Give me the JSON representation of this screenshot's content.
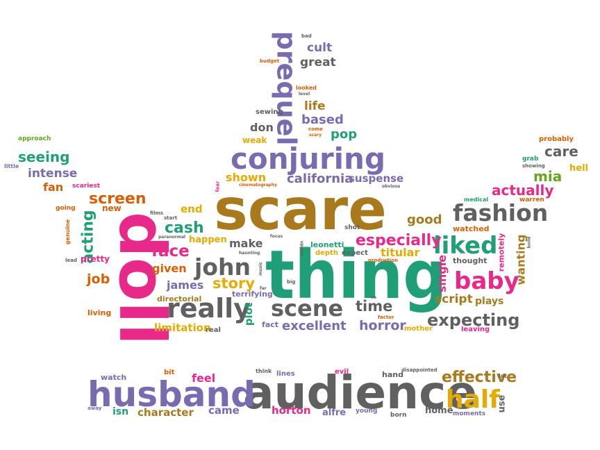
{
  "words": [
    {
      "text": "scare",
      "color": "#a97a1d"
    },
    {
      "text": "thing",
      "color": "#1f9e77"
    },
    {
      "text": "doll",
      "color": "#e7298a"
    },
    {
      "text": "audience",
      "color": "#606060"
    },
    {
      "text": "husband",
      "color": "#7a6bb0"
    },
    {
      "text": "conjuring",
      "color": "#7a6bb0"
    },
    {
      "text": "prequel",
      "color": "#7a6bb0"
    },
    {
      "text": "fashion",
      "color": "#606060"
    },
    {
      "text": "really",
      "color": "#606060"
    },
    {
      "text": "scene",
      "color": "#606060"
    },
    {
      "text": "liked",
      "color": "#1f9e77"
    },
    {
      "text": "baby",
      "color": "#e7298a"
    },
    {
      "text": "half",
      "color": "#e6ab02"
    },
    {
      "text": "john",
      "color": "#606060"
    },
    {
      "text": "expecting",
      "color": "#606060"
    },
    {
      "text": "especially",
      "color": "#e7298a"
    },
    {
      "text": "effective",
      "color": "#a97a1d"
    },
    {
      "text": "california",
      "color": "#7a6bb0"
    },
    {
      "text": "screen",
      "color": "#d95f02"
    },
    {
      "text": "acting",
      "color": "#1f9e77"
    },
    {
      "text": "seeing",
      "color": "#1f9e77"
    },
    {
      "text": "intense",
      "color": "#7a6bb0"
    },
    {
      "text": "actually",
      "color": "#e7298a"
    },
    {
      "text": "face",
      "color": "#e7298a"
    },
    {
      "text": "cash",
      "color": "#1f9e77"
    },
    {
      "text": "story",
      "color": "#e6ab02"
    },
    {
      "text": "time",
      "color": "#606060"
    },
    {
      "text": "horror",
      "color": "#7a6bb0"
    },
    {
      "text": "excellent",
      "color": "#7a6bb0"
    },
    {
      "text": "based",
      "color": "#7a6bb0"
    },
    {
      "text": "life",
      "color": "#a97a1d"
    },
    {
      "text": "pop",
      "color": "#1f9e77"
    },
    {
      "text": "cult",
      "color": "#7a6bb0"
    },
    {
      "text": "great",
      "color": "#606060"
    },
    {
      "text": "don",
      "color": "#606060"
    },
    {
      "text": "make",
      "color": "#606060"
    },
    {
      "text": "shown",
      "color": "#e6ab02"
    },
    {
      "text": "suspense",
      "color": "#7a6bb0"
    },
    {
      "text": "good",
      "color": "#a97a1d"
    },
    {
      "text": "care",
      "color": "#606060"
    },
    {
      "text": "mia",
      "color": "#66a61e"
    },
    {
      "text": "titular",
      "color": "#e6ab02"
    },
    {
      "text": "script",
      "color": "#a97a1d"
    },
    {
      "text": "plays",
      "color": "#a97a1d"
    },
    {
      "text": "wanting",
      "color": "#a97a1d"
    },
    {
      "text": "single",
      "color": "#e7298a"
    },
    {
      "text": "james",
      "color": "#7a6bb0"
    },
    {
      "text": "given",
      "color": "#d95f02"
    },
    {
      "text": "job",
      "color": "#d95f02"
    },
    {
      "text": "plot",
      "color": "#1f9e77"
    },
    {
      "text": "limitation",
      "color": "#e6ab02"
    },
    {
      "text": "fan",
      "color": "#d95f02"
    },
    {
      "text": "end",
      "color": "#e6ab02"
    },
    {
      "text": "happen",
      "color": "#e6ab02"
    },
    {
      "text": "feel",
      "color": "#e7298a"
    },
    {
      "text": "character",
      "color": "#a97a1d"
    },
    {
      "text": "came",
      "color": "#7a6bb0"
    },
    {
      "text": "horton",
      "color": "#e7298a"
    },
    {
      "text": "alfre",
      "color": "#7a6bb0"
    },
    {
      "text": "isn",
      "color": "#1f9e77"
    },
    {
      "text": "home",
      "color": "#606060"
    },
    {
      "text": "use",
      "color": "#606060"
    },
    {
      "text": "hell",
      "color": "#e6ab02"
    },
    {
      "text": "weak",
      "color": "#e6ab02"
    },
    {
      "text": "new",
      "color": "#d95f02"
    },
    {
      "text": "pretty",
      "color": "#e7298a"
    },
    {
      "text": "living",
      "color": "#d95f02"
    },
    {
      "text": "remotely",
      "color": "#e7298a"
    },
    {
      "text": "leonetti",
      "color": "#1f9e77"
    },
    {
      "text": "watched",
      "color": "#d95f02"
    },
    {
      "text": "thought",
      "color": "#606060"
    },
    {
      "text": "terrifying",
      "color": "#7a6bb0"
    },
    {
      "text": "directorial",
      "color": "#a97a1d"
    },
    {
      "text": "fact",
      "color": "#7a6bb0"
    },
    {
      "text": "real",
      "color": "#606060"
    },
    {
      "text": "mother",
      "color": "#e6ab02"
    },
    {
      "text": "leaving",
      "color": "#e7298a"
    },
    {
      "text": "watch",
      "color": "#7a6bb0"
    },
    {
      "text": "bit",
      "color": "#d95f02"
    },
    {
      "text": "think",
      "color": "#606060"
    },
    {
      "text": "lines",
      "color": "#7a6bb0"
    },
    {
      "text": "evil",
      "color": "#e7298a"
    },
    {
      "text": "hand",
      "color": "#606060"
    },
    {
      "text": "disappointed",
      "color": "#606060"
    },
    {
      "text": "lot",
      "color": "#606060"
    },
    {
      "text": "young",
      "color": "#7a6bb0"
    },
    {
      "text": "born",
      "color": "#606060"
    },
    {
      "text": "moments",
      "color": "#7a6bb0"
    },
    {
      "text": "away",
      "color": "#7a6bb0"
    },
    {
      "text": "depth",
      "color": "#e6ab02"
    },
    {
      "text": "expect",
      "color": "#606060"
    },
    {
      "text": "production",
      "color": "#d95f02"
    },
    {
      "text": "factor",
      "color": "#d95f02"
    },
    {
      "text": "probably",
      "color": "#d95f02"
    },
    {
      "text": "grab",
      "color": "#1f9e77"
    },
    {
      "text": "showing",
      "color": "#606060"
    },
    {
      "text": "medical",
      "color": "#1f9e77"
    },
    {
      "text": "warren",
      "color": "#d95f02"
    },
    {
      "text": "approach",
      "color": "#66a61e"
    },
    {
      "text": "little",
      "color": "#7a6bb0"
    },
    {
      "text": "scariest",
      "color": "#e7298a"
    },
    {
      "text": "going",
      "color": "#d95f02"
    },
    {
      "text": "genuine",
      "color": "#d95f02"
    },
    {
      "text": "lead",
      "color": "#606060"
    },
    {
      "text": "films",
      "color": "#606060"
    },
    {
      "text": "start",
      "color": "#606060"
    },
    {
      "text": "paranormal",
      "color": "#606060"
    },
    {
      "text": "fear",
      "color": "#e7298a"
    },
    {
      "text": "cinematography",
      "color": "#d95f02"
    },
    {
      "text": "obvious",
      "color": "#606060"
    },
    {
      "text": "sewing",
      "color": "#606060"
    },
    {
      "text": "come",
      "color": "#d95f02"
    },
    {
      "text": "scary",
      "color": "#d95f02"
    },
    {
      "text": "looked",
      "color": "#d95f02"
    },
    {
      "text": "level",
      "color": "#606060"
    },
    {
      "text": "budget",
      "color": "#d95f02"
    },
    {
      "text": "bad",
      "color": "#606060"
    },
    {
      "text": "shot",
      "color": "#606060"
    },
    {
      "text": "focus",
      "color": "#606060"
    },
    {
      "text": "couldn",
      "color": "#606060"
    },
    {
      "text": "haunting",
      "color": "#606060"
    },
    {
      "text": "music",
      "color": "#606060"
    },
    {
      "text": "big",
      "color": "#606060"
    },
    {
      "text": "far",
      "color": "#606060"
    },
    {
      "text": "ve",
      "color": "#606060"
    },
    {
      "text": "build",
      "color": "#606060"
    }
  ]
}
